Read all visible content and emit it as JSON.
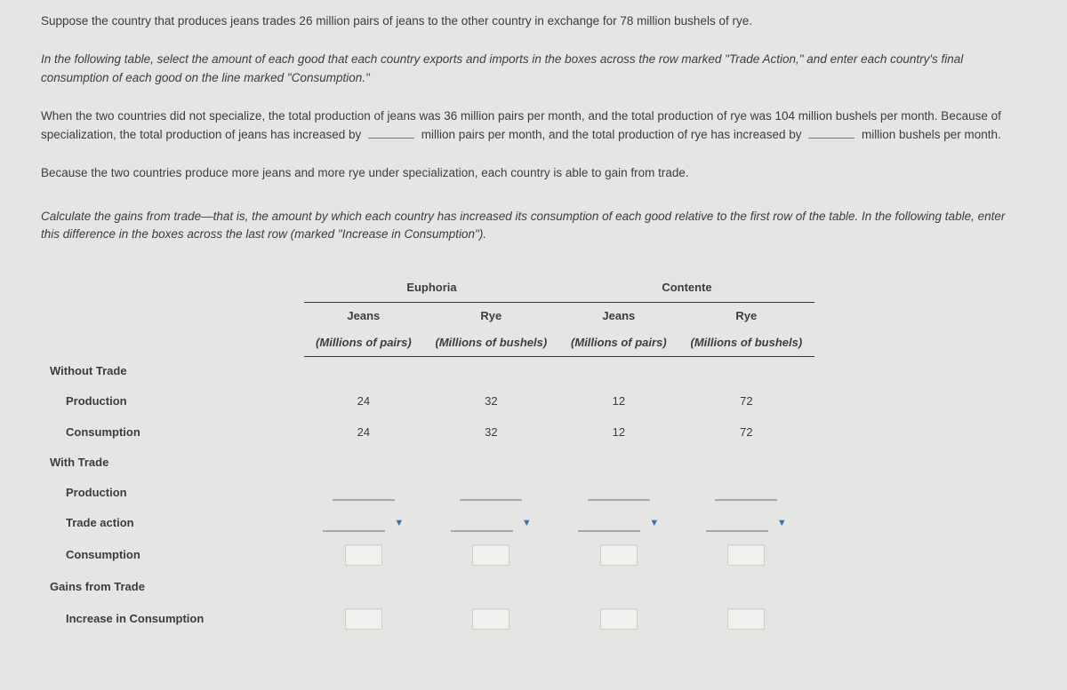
{
  "paragraph1": "Suppose the country that produces jeans trades 26 million pairs of jeans to the other country in exchange for 78 million bushels of rye.",
  "paragraph2": "In the following table, select the amount of each good that each country exports and imports in the boxes across the row marked \"Trade Action,\" and enter each country's final consumption of each good on the line marked \"Consumption.\"",
  "p3a": "When the two countries did not specialize, the total production of jeans was 36 million pairs per month, and the total production of rye was 104 million bushels per month. Because of specialization, the total production of jeans has increased by ",
  "p3b": " million pairs per month, and the total production of rye has increased by ",
  "p3c": " million bushels per month.",
  "paragraph4": "Because the two countries produce more jeans and more rye under specialization, each country is able to gain from trade.",
  "paragraph5": "Calculate the gains from trade—that is, the amount by which each country has increased its consumption of each good relative to the first row of the table. In the following table, enter this difference in the boxes across the last row (marked \"Increase in Consumption\").",
  "table": {
    "country1": "Euphoria",
    "country2": "Contente",
    "good1": "Jeans",
    "good2": "Rye",
    "unit1": "(Millions of pairs)",
    "unit2": "(Millions of bushels)",
    "row_labels": {
      "without_trade": "Without Trade",
      "production": "Production",
      "consumption": "Consumption",
      "with_trade": "With Trade",
      "trade_action": "Trade action",
      "gains": "Gains from Trade",
      "increase": "Increase in Consumption"
    },
    "without_trade_production": {
      "c1g1": "24",
      "c1g2": "32",
      "c2g1": "12",
      "c2g2": "72"
    },
    "without_trade_consumption": {
      "c1g1": "24",
      "c1g2": "32",
      "c2g1": "12",
      "c2g2": "72"
    }
  },
  "dropdown_glyph": "▼"
}
